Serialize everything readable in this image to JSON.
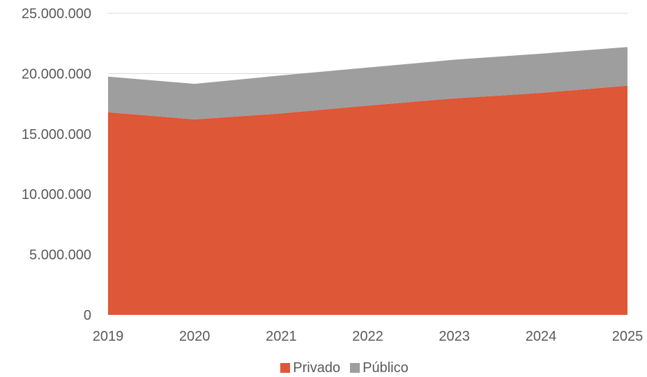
{
  "chart_data": {
    "type": "area",
    "stacked": true,
    "x": [
      "2019",
      "2020",
      "2021",
      "2022",
      "2023",
      "2024",
      "2025"
    ],
    "series": [
      {
        "name": "Privado",
        "color": "#de5737",
        "values": [
          16800000,
          16200000,
          16700000,
          17350000,
          17950000,
          18400000,
          19000000
        ]
      },
      {
        "name": "Público",
        "color": "#9e9e9e",
        "values": [
          2950000,
          2950000,
          3150000,
          3150000,
          3200000,
          3250000,
          3200000
        ]
      }
    ],
    "y_ticks": [
      "0",
      "5.000.000",
      "10.000.000",
      "15.000.000",
      "20.000.000",
      "25.000.000"
    ],
    "ylim": [
      0,
      25000000
    ],
    "title": "",
    "xlabel": "",
    "ylabel": "",
    "grid": "horizontal",
    "gridline_color": "#d9d9d9",
    "legend_position": "bottom"
  }
}
